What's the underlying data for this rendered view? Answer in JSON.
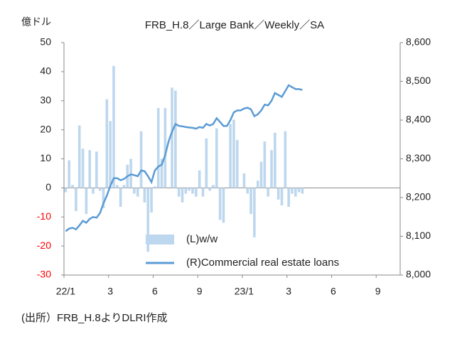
{
  "chart_data": {
    "type": "bar_line",
    "title": "FRB_H.8／Large Bank／Weekly／SA",
    "unit_label": "億ドル",
    "source": "(出所）FRB_H.8よりDLRI作成",
    "categories": [
      "22/1",
      null,
      null,
      null,
      null,
      null,
      null,
      null,
      null,
      null,
      null,
      null,
      null,
      "3",
      null,
      null,
      null,
      null,
      null,
      null,
      null,
      null,
      null,
      null,
      null,
      null,
      "6",
      null,
      null,
      null,
      null,
      null,
      null,
      null,
      null,
      null,
      null,
      null,
      null,
      "9",
      null,
      null,
      null,
      null,
      null,
      null,
      null,
      null,
      null,
      null,
      null,
      null,
      "23/1",
      null,
      null,
      null,
      null,
      null,
      null,
      null,
      null,
      null,
      null,
      null,
      null,
      "3",
      null,
      null,
      null,
      null,
      null,
      null,
      null,
      null,
      null,
      null,
      null,
      null,
      "6",
      null,
      null,
      null,
      null,
      null,
      null,
      null,
      null,
      null,
      null,
      null,
      null,
      "9",
      null,
      null,
      null,
      null,
      null,
      null
    ],
    "series": [
      {
        "name": "(L)w/w",
        "type": "bar",
        "color": "#bdd7ee",
        "axis": "y",
        "values": [
          -1.5,
          9.5,
          1,
          -8,
          21.5,
          13.5,
          -9,
          13,
          -2,
          12.5,
          -1,
          -7,
          30.5,
          23,
          42,
          1,
          -6.5,
          1,
          8,
          10,
          -2,
          -3,
          19.5,
          -5,
          -22,
          -8.5,
          0.5,
          27.5,
          10,
          27.5,
          0,
          34.5,
          33.5,
          -3,
          -5,
          -2,
          -1,
          -2,
          -3,
          6,
          -3,
          17,
          -1,
          1,
          20.5,
          -11,
          -12,
          0,
          22,
          23.5,
          16.5,
          0,
          5,
          -2,
          -9,
          -17,
          2.5,
          9,
          16,
          -3,
          13,
          19,
          -4,
          -6,
          19.5,
          -6.5,
          -2,
          -3,
          -1.5,
          -2,
          null,
          null,
          null,
          null,
          null,
          null,
          null,
          null,
          null,
          null,
          null,
          null,
          null,
          null,
          null,
          null,
          null,
          null,
          null,
          null,
          null,
          null,
          null,
          null,
          null,
          null,
          null,
          null
        ]
      },
      {
        "name": "(R)Commercial real estate loans",
        "type": "line",
        "color": "#5b9bd5",
        "axis": "y2",
        "values": [
          8113,
          8120,
          8122,
          8118,
          8128,
          8140,
          8135,
          8145,
          8150,
          8148,
          8160,
          8185,
          8205,
          8230,
          8250,
          8250,
          8245,
          8248,
          8255,
          8260,
          8258,
          8255,
          8270,
          8268,
          8255,
          8240,
          8270,
          8280,
          8285,
          8310,
          8345,
          8370,
          8390,
          8385,
          8384,
          8382,
          8381,
          8380,
          8378,
          8382,
          8380,
          8390,
          8386,
          8390,
          8405,
          8395,
          8385,
          8385,
          8400,
          8420,
          8425,
          8425,
          8430,
          8432,
          8428,
          8410,
          8415,
          8425,
          8440,
          8438,
          8450,
          8470,
          8465,
          8460,
          8475,
          8490,
          8485,
          8480,
          8480,
          8478,
          null,
          null,
          null,
          null,
          null,
          null,
          null,
          null,
          null,
          null,
          null,
          null,
          null,
          null,
          null,
          null,
          null,
          null,
          null,
          null,
          null,
          null,
          null,
          null,
          null,
          null,
          null,
          null
        ]
      }
    ],
    "ylim": [
      -30,
      50
    ],
    "yticks": [
      -30,
      -20,
      -10,
      0,
      10,
      20,
      30,
      40,
      50
    ],
    "negative_tick_color": "#ff0000",
    "y2lim": [
      8000,
      8600
    ],
    "y2ticks": [
      {
        "value": 8000,
        "label": "8,000"
      },
      {
        "value": 8100,
        "label": "8,100"
      },
      {
        "value": 8200,
        "label": "8,200"
      },
      {
        "value": 8300,
        "label": "8,300"
      },
      {
        "value": 8400,
        "label": "8,400"
      },
      {
        "value": 8500,
        "label": "8,500"
      },
      {
        "value": 8600,
        "label": "8,600"
      }
    ]
  }
}
